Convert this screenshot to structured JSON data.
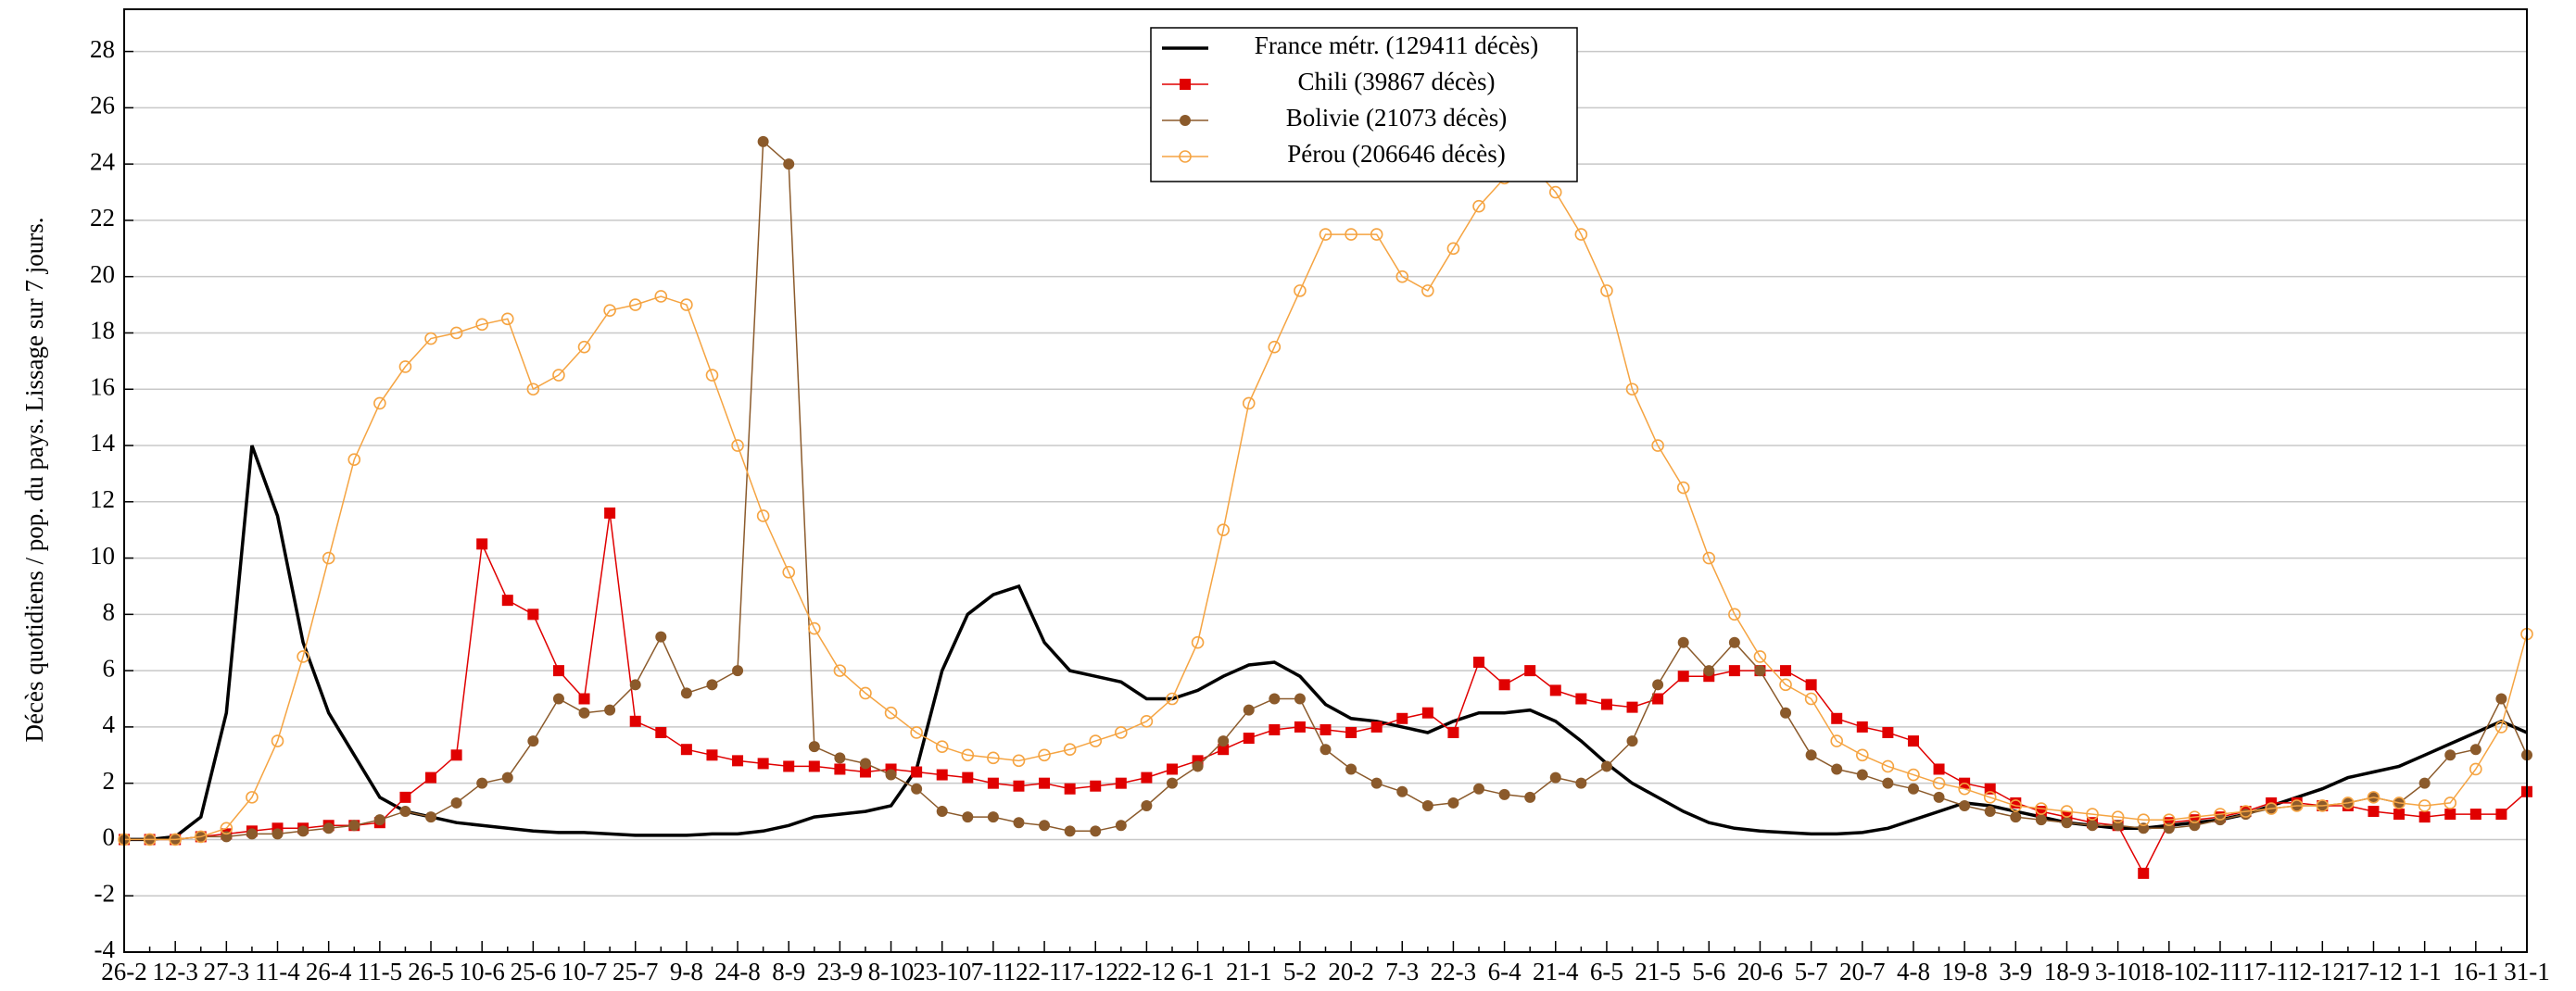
{
  "chart_data": {
    "type": "line",
    "y_label": "Décès quotidiens / pop. du pays. Lissage sur 7 jours.",
    "categories": [
      "26-2",
      null,
      "12-3",
      null,
      "27-3",
      null,
      "11-4",
      null,
      "26-4",
      null,
      "11-5",
      null,
      "26-5",
      null,
      "10-6",
      null,
      "25-6",
      null,
      "10-7",
      null,
      "25-7",
      null,
      "9-8",
      null,
      "24-8",
      null,
      "8-9",
      null,
      "23-9",
      null,
      "8-10",
      null,
      "23-10",
      null,
      "7-11",
      null,
      "22-11",
      null,
      "7-12",
      null,
      "22-12",
      null,
      "6-1",
      null,
      "21-1",
      null,
      "5-2",
      null,
      "20-2",
      null,
      "7-3",
      null,
      "22-3",
      null,
      "6-4",
      null,
      "21-4",
      null,
      "6-5",
      null,
      "21-5",
      null,
      "5-6",
      null,
      "20-6",
      null,
      "5-7",
      null,
      "20-7",
      null,
      "4-8",
      null,
      "19-8",
      null,
      "3-9",
      null,
      "18-9",
      null,
      "3-10",
      null,
      "18-10",
      null,
      "2-11",
      null,
      "17-11",
      null,
      "2-12",
      null,
      "17-12",
      null,
      "1-1",
      null,
      "16-1",
      null,
      "31-1"
    ],
    "series": [
      {
        "name": "France métr. (129411 décès)",
        "color": "#000000",
        "marker": "none",
        "values": [
          0,
          0,
          0.1,
          0.8,
          4.5,
          14,
          11.5,
          7,
          4.5,
          3,
          1.5,
          1.0,
          0.8,
          0.6,
          0.5,
          0.4,
          0.3,
          0.25,
          0.25,
          0.2,
          0.15,
          0.15,
          0.15,
          0.2,
          0.2,
          0.3,
          0.5,
          0.8,
          0.9,
          1.0,
          1.2,
          2.5,
          6,
          8,
          8.7,
          9,
          7,
          6,
          5.8,
          5.6,
          5,
          5,
          5.3,
          5.8,
          6.2,
          6.3,
          5.8,
          4.8,
          4.3,
          4.2,
          4.0,
          3.8,
          4.2,
          4.5,
          4.5,
          4.6,
          4.2,
          3.5,
          2.7,
          2.0,
          1.5,
          1.0,
          0.6,
          0.4,
          0.3,
          0.25,
          0.2,
          0.2,
          0.25,
          0.4,
          0.7,
          1.0,
          1.3,
          1.2,
          1.0,
          0.8,
          0.6,
          0.5,
          0.4,
          0.4,
          0.5,
          0.6,
          0.7,
          0.9,
          1.2,
          1.5,
          1.8,
          2.2,
          2.4,
          2.6,
          3.0,
          3.4,
          3.8,
          4.2,
          3.8
        ]
      },
      {
        "name": "Chili (39867 décès)",
        "color": "#e00000",
        "marker": "square",
        "values": [
          0,
          0,
          0,
          0.1,
          0.2,
          0.3,
          0.4,
          0.4,
          0.5,
          0.5,
          0.6,
          1.5,
          2.2,
          3,
          10.5,
          8.5,
          8,
          6,
          5,
          11.6,
          4.2,
          3.8,
          3.2,
          3.0,
          2.8,
          2.7,
          2.6,
          2.6,
          2.5,
          2.4,
          2.5,
          2.4,
          2.3,
          2.2,
          2.0,
          1.9,
          2.0,
          1.8,
          1.9,
          2.0,
          2.2,
          2.5,
          2.8,
          3.2,
          3.6,
          3.9,
          4.0,
          3.9,
          3.8,
          4.0,
          4.3,
          4.5,
          3.8,
          6.3,
          5.5,
          6.0,
          5.3,
          5.0,
          4.8,
          4.7,
          5.0,
          5.8,
          5.8,
          6.0,
          6.0,
          6.0,
          5.5,
          4.3,
          4.0,
          3.8,
          3.5,
          2.5,
          2.0,
          1.8,
          1.3,
          1.0,
          0.8,
          0.6,
          0.5,
          -1.2,
          0.6,
          0.7,
          0.8,
          1.0,
          1.3,
          1.3,
          1.2,
          1.2,
          1.0,
          0.9,
          0.8,
          0.9,
          0.9,
          0.9,
          1.7
        ]
      },
      {
        "name": "Bolivie (21073 décès)",
        "color": "#8b5a2b",
        "marker": "circle",
        "values": [
          0,
          0,
          0,
          0.1,
          0.1,
          0.2,
          0.2,
          0.3,
          0.4,
          0.5,
          0.7,
          1.0,
          0.8,
          1.3,
          2.0,
          2.2,
          3.5,
          5.0,
          4.5,
          4.6,
          5.5,
          7.2,
          5.2,
          5.5,
          6.0,
          24.8,
          24,
          3.3,
          2.9,
          2.7,
          2.3,
          1.8,
          1.0,
          0.8,
          0.8,
          0.6,
          0.5,
          0.3,
          0.3,
          0.5,
          1.2,
          2.0,
          2.6,
          3.5,
          4.6,
          5.0,
          5.0,
          3.2,
          2.5,
          2.0,
          1.7,
          1.2,
          1.3,
          1.8,
          1.6,
          1.5,
          2.2,
          2.0,
          2.6,
          3.5,
          5.5,
          7.0,
          6.0,
          7.0,
          6.0,
          4.5,
          3.0,
          2.5,
          2.3,
          2.0,
          1.8,
          1.5,
          1.2,
          1.0,
          0.8,
          0.7,
          0.6,
          0.5,
          0.5,
          0.4,
          0.4,
          0.5,
          0.7,
          0.9,
          1.1,
          1.2,
          1.2,
          1.3,
          1.5,
          1.3,
          2.0,
          3.0,
          3.2,
          5.0,
          3.0
        ]
      },
      {
        "name": "Pérou (206646 décès)",
        "color": "#f5a442",
        "marker": "open-circle",
        "values": [
          0,
          0,
          0,
          0.1,
          0.4,
          1.5,
          3.5,
          6.5,
          10,
          13.5,
          15.5,
          16.8,
          17.8,
          18,
          18.3,
          18.5,
          16,
          16.5,
          17.5,
          18.8,
          19,
          19.3,
          19,
          16.5,
          14,
          11.5,
          9.5,
          7.5,
          6,
          5.2,
          4.5,
          3.8,
          3.3,
          3.0,
          2.9,
          2.8,
          3.0,
          3.2,
          3.5,
          3.8,
          4.2,
          5.0,
          7.0,
          11,
          15.5,
          17.5,
          19.5,
          21.5,
          21.5,
          21.5,
          20,
          19.5,
          21,
          22.5,
          23.5,
          24,
          23,
          21.5,
          19.5,
          16,
          14,
          12.5,
          10,
          8,
          6.5,
          5.5,
          5.0,
          3.5,
          3.0,
          2.6,
          2.3,
          2.0,
          1.8,
          1.5,
          1.2,
          1.1,
          1.0,
          0.9,
          0.8,
          0.7,
          0.7,
          0.8,
          0.9,
          1.0,
          1.1,
          1.2,
          1.2,
          1.3,
          1.5,
          1.3,
          1.2,
          1.3,
          2.5,
          4.0,
          7.3
        ]
      }
    ],
    "ylim": [
      -4,
      29.5
    ],
    "yticks": [
      -4,
      -2,
      0,
      2,
      4,
      6,
      8,
      10,
      12,
      14,
      16,
      18,
      20,
      22,
      24,
      26,
      28
    ],
    "grid": true,
    "legend": "top"
  }
}
